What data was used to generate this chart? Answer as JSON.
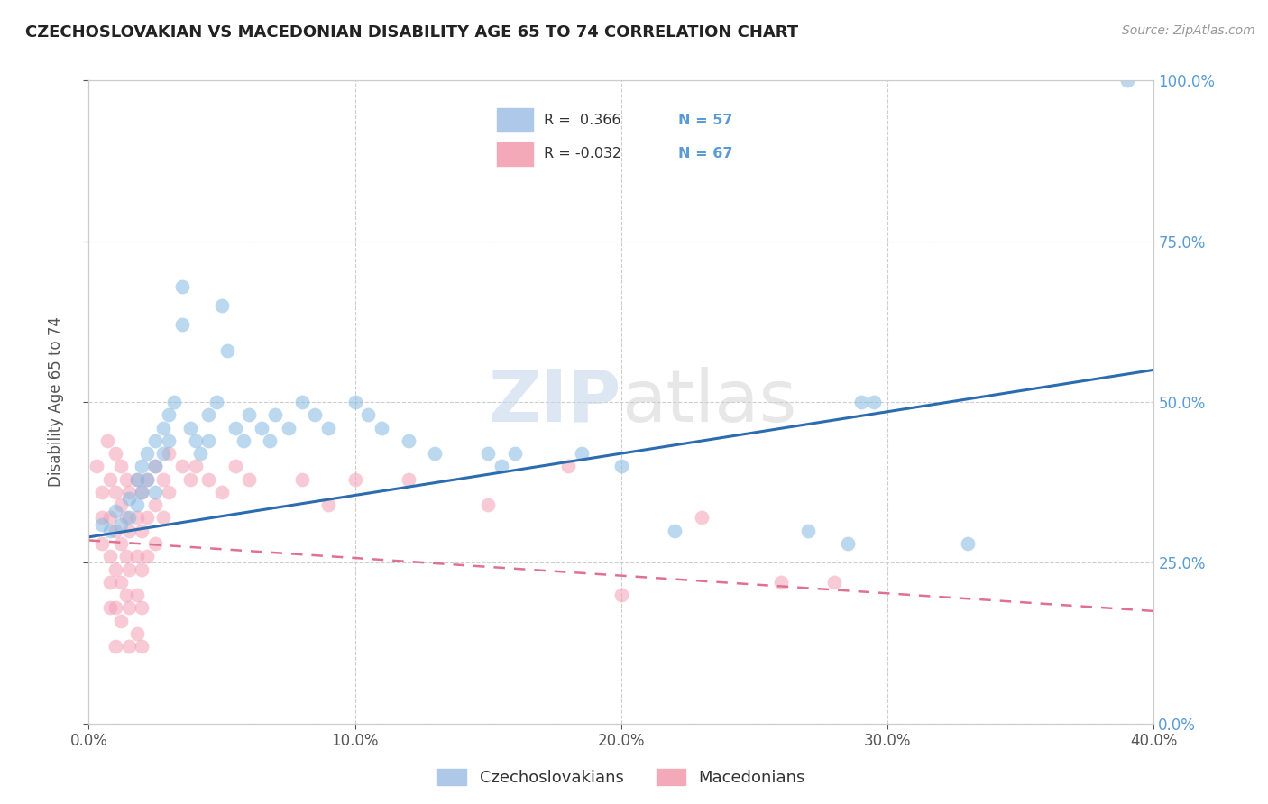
{
  "title": "CZECHOSLOVAKIAN VS MACEDONIAN DISABILITY AGE 65 TO 74 CORRELATION CHART",
  "source_text": "Source: ZipAtlas.com",
  "ylabel": "Disability Age 65 to 74",
  "xticklabels": [
    "0.0%",
    "10.0%",
    "20.0%",
    "30.0%",
    "40.0%"
  ],
  "yticklabels_right": [
    "0.0%",
    "25.0%",
    "50.0%",
    "75.0%",
    "100.0%"
  ],
  "xlim": [
    0.0,
    0.4
  ],
  "ylim": [
    0.0,
    1.0
  ],
  "r_blue": 0.366,
  "n_blue": 57,
  "r_pink": -0.032,
  "n_pink": 67,
  "blue_scatter_color": "#85b9e0",
  "pink_scatter_color": "#f4a0b5",
  "blue_line_color": "#2b6cb0",
  "pink_line_color": "#e07090",
  "right_axis_color": "#5b9bd5",
  "watermark_color": "#d0e4f0",
  "background_color": "#ffffff",
  "grid_color": "#c8c8c8",
  "title_color": "#222222",
  "blue_scatter": [
    [
      0.005,
      0.31
    ],
    [
      0.008,
      0.3
    ],
    [
      0.01,
      0.33
    ],
    [
      0.012,
      0.31
    ],
    [
      0.015,
      0.35
    ],
    [
      0.015,
      0.32
    ],
    [
      0.018,
      0.38
    ],
    [
      0.018,
      0.34
    ],
    [
      0.02,
      0.4
    ],
    [
      0.02,
      0.36
    ],
    [
      0.022,
      0.42
    ],
    [
      0.022,
      0.38
    ],
    [
      0.025,
      0.44
    ],
    [
      0.025,
      0.4
    ],
    [
      0.025,
      0.36
    ],
    [
      0.028,
      0.46
    ],
    [
      0.028,
      0.42
    ],
    [
      0.03,
      0.48
    ],
    [
      0.03,
      0.44
    ],
    [
      0.032,
      0.5
    ],
    [
      0.035,
      0.68
    ],
    [
      0.035,
      0.62
    ],
    [
      0.038,
      0.46
    ],
    [
      0.04,
      0.44
    ],
    [
      0.042,
      0.42
    ],
    [
      0.045,
      0.48
    ],
    [
      0.045,
      0.44
    ],
    [
      0.048,
      0.5
    ],
    [
      0.05,
      0.65
    ],
    [
      0.052,
      0.58
    ],
    [
      0.055,
      0.46
    ],
    [
      0.058,
      0.44
    ],
    [
      0.06,
      0.48
    ],
    [
      0.065,
      0.46
    ],
    [
      0.068,
      0.44
    ],
    [
      0.07,
      0.48
    ],
    [
      0.075,
      0.46
    ],
    [
      0.08,
      0.5
    ],
    [
      0.085,
      0.48
    ],
    [
      0.09,
      0.46
    ],
    [
      0.1,
      0.5
    ],
    [
      0.105,
      0.48
    ],
    [
      0.11,
      0.46
    ],
    [
      0.12,
      0.44
    ],
    [
      0.13,
      0.42
    ],
    [
      0.15,
      0.42
    ],
    [
      0.155,
      0.4
    ],
    [
      0.16,
      0.42
    ],
    [
      0.185,
      0.42
    ],
    [
      0.2,
      0.4
    ],
    [
      0.22,
      0.3
    ],
    [
      0.27,
      0.3
    ],
    [
      0.285,
      0.28
    ],
    [
      0.29,
      0.5
    ],
    [
      0.295,
      0.5
    ],
    [
      0.33,
      0.28
    ],
    [
      0.39,
      1.0
    ]
  ],
  "pink_scatter": [
    [
      0.003,
      0.4
    ],
    [
      0.005,
      0.36
    ],
    [
      0.005,
      0.32
    ],
    [
      0.005,
      0.28
    ],
    [
      0.007,
      0.44
    ],
    [
      0.008,
      0.38
    ],
    [
      0.008,
      0.32
    ],
    [
      0.008,
      0.26
    ],
    [
      0.008,
      0.22
    ],
    [
      0.008,
      0.18
    ],
    [
      0.01,
      0.42
    ],
    [
      0.01,
      0.36
    ],
    [
      0.01,
      0.3
    ],
    [
      0.01,
      0.24
    ],
    [
      0.01,
      0.18
    ],
    [
      0.01,
      0.12
    ],
    [
      0.012,
      0.4
    ],
    [
      0.012,
      0.34
    ],
    [
      0.012,
      0.28
    ],
    [
      0.012,
      0.22
    ],
    [
      0.012,
      0.16
    ],
    [
      0.014,
      0.38
    ],
    [
      0.014,
      0.32
    ],
    [
      0.014,
      0.26
    ],
    [
      0.014,
      0.2
    ],
    [
      0.015,
      0.36
    ],
    [
      0.015,
      0.3
    ],
    [
      0.015,
      0.24
    ],
    [
      0.015,
      0.18
    ],
    [
      0.015,
      0.12
    ],
    [
      0.018,
      0.38
    ],
    [
      0.018,
      0.32
    ],
    [
      0.018,
      0.26
    ],
    [
      0.018,
      0.2
    ],
    [
      0.018,
      0.14
    ],
    [
      0.02,
      0.36
    ],
    [
      0.02,
      0.3
    ],
    [
      0.02,
      0.24
    ],
    [
      0.02,
      0.18
    ],
    [
      0.02,
      0.12
    ],
    [
      0.022,
      0.38
    ],
    [
      0.022,
      0.32
    ],
    [
      0.022,
      0.26
    ],
    [
      0.025,
      0.4
    ],
    [
      0.025,
      0.34
    ],
    [
      0.025,
      0.28
    ],
    [
      0.028,
      0.38
    ],
    [
      0.028,
      0.32
    ],
    [
      0.03,
      0.42
    ],
    [
      0.03,
      0.36
    ],
    [
      0.035,
      0.4
    ],
    [
      0.038,
      0.38
    ],
    [
      0.04,
      0.4
    ],
    [
      0.045,
      0.38
    ],
    [
      0.05,
      0.36
    ],
    [
      0.055,
      0.4
    ],
    [
      0.06,
      0.38
    ],
    [
      0.08,
      0.38
    ],
    [
      0.09,
      0.34
    ],
    [
      0.1,
      0.38
    ],
    [
      0.12,
      0.38
    ],
    [
      0.15,
      0.34
    ],
    [
      0.18,
      0.4
    ],
    [
      0.2,
      0.2
    ],
    [
      0.23,
      0.32
    ],
    [
      0.26,
      0.22
    ],
    [
      0.28,
      0.22
    ]
  ]
}
